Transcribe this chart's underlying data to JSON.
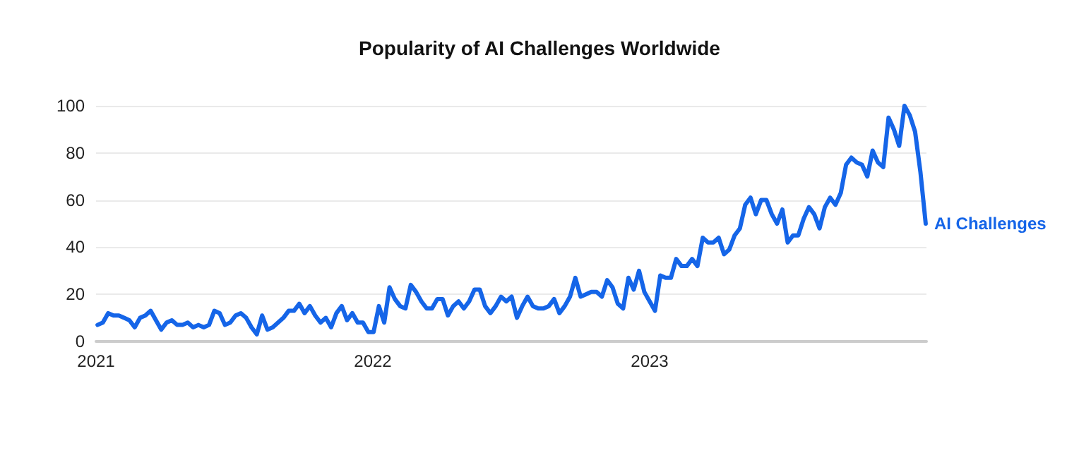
{
  "chart_data": {
    "type": "line",
    "title": "Popularity of AI Challenges Worldwide",
    "x": [
      "2021-01-03",
      "2021-01-10",
      "2021-01-17",
      "2021-01-24",
      "2021-01-31",
      "2021-02-07",
      "2021-02-14",
      "2021-02-21",
      "2021-02-28",
      "2021-03-07",
      "2021-03-14",
      "2021-03-21",
      "2021-03-28",
      "2021-04-04",
      "2021-04-11",
      "2021-04-18",
      "2021-04-25",
      "2021-05-02",
      "2021-05-09",
      "2021-05-16",
      "2021-05-23",
      "2021-05-30",
      "2021-06-06",
      "2021-06-13",
      "2021-06-20",
      "2021-06-27",
      "2021-07-04",
      "2021-07-11",
      "2021-07-18",
      "2021-07-25",
      "2021-08-01",
      "2021-08-08",
      "2021-08-15",
      "2021-08-22",
      "2021-08-29",
      "2021-09-05",
      "2021-09-12",
      "2021-09-19",
      "2021-09-26",
      "2021-10-03",
      "2021-10-10",
      "2021-10-17",
      "2021-10-24",
      "2021-10-31",
      "2021-11-07",
      "2021-11-14",
      "2021-11-21",
      "2021-11-28",
      "2021-12-05",
      "2021-12-12",
      "2021-12-19",
      "2021-12-26",
      "2022-01-02",
      "2022-01-09",
      "2022-01-16",
      "2022-01-23",
      "2022-01-30",
      "2022-02-06",
      "2022-02-13",
      "2022-02-20",
      "2022-02-27",
      "2022-03-06",
      "2022-03-13",
      "2022-03-20",
      "2022-03-27",
      "2022-04-03",
      "2022-04-10",
      "2022-04-17",
      "2022-04-24",
      "2022-05-01",
      "2022-05-08",
      "2022-05-15",
      "2022-05-22",
      "2022-05-29",
      "2022-06-05",
      "2022-06-12",
      "2022-06-19",
      "2022-06-26",
      "2022-07-03",
      "2022-07-10",
      "2022-07-17",
      "2022-07-24",
      "2022-07-31",
      "2022-08-07",
      "2022-08-14",
      "2022-08-21",
      "2022-08-28",
      "2022-09-04",
      "2022-09-11",
      "2022-09-18",
      "2022-09-25",
      "2022-10-02",
      "2022-10-09",
      "2022-10-16",
      "2022-10-23",
      "2022-10-30",
      "2022-11-06",
      "2022-11-13",
      "2022-11-20",
      "2022-11-27",
      "2022-12-04",
      "2022-12-11",
      "2022-12-18",
      "2022-12-25",
      "2023-01-01",
      "2023-01-08",
      "2023-01-15",
      "2023-01-22",
      "2023-01-29",
      "2023-02-05",
      "2023-02-12",
      "2023-02-19",
      "2023-02-26",
      "2023-03-05",
      "2023-03-12",
      "2023-03-19",
      "2023-03-26",
      "2023-04-02",
      "2023-04-09",
      "2023-04-16",
      "2023-04-23",
      "2023-04-30",
      "2023-05-07",
      "2023-05-14",
      "2023-05-21",
      "2023-05-28",
      "2023-06-04",
      "2023-06-11",
      "2023-06-18",
      "2023-06-25",
      "2023-07-02",
      "2023-07-09",
      "2023-07-16",
      "2023-07-23",
      "2023-07-30",
      "2023-08-06",
      "2023-08-13",
      "2023-08-20",
      "2023-08-27",
      "2023-09-03",
      "2023-09-10",
      "2023-09-17",
      "2023-09-24",
      "2023-10-01",
      "2023-10-08",
      "2023-10-15",
      "2023-10-22",
      "2023-10-29",
      "2023-11-05",
      "2023-11-12",
      "2023-11-19",
      "2023-11-26",
      "2023-12-03",
      "2023-12-10",
      "2023-12-17",
      "2023-12-24",
      "2023-12-31"
    ],
    "series": [
      {
        "name": "AI Challenges",
        "color": "#1565e8",
        "values": [
          7,
          8,
          12,
          11,
          11,
          10,
          9,
          6,
          10,
          11,
          13,
          9,
          5,
          8,
          9,
          7,
          7,
          8,
          6,
          7,
          6,
          7,
          13,
          12,
          7,
          8,
          11,
          12,
          10,
          6,
          3,
          11,
          5,
          6,
          8,
          10,
          13,
          13,
          16,
          12,
          15,
          11,
          8,
          10,
          6,
          12,
          15,
          9,
          12,
          8,
          8,
          4,
          4,
          15,
          8,
          23,
          18,
          15,
          14,
          24,
          21,
          17,
          14,
          14,
          18,
          18,
          11,
          15,
          17,
          14,
          17,
          22,
          22,
          15,
          12,
          15,
          19,
          17,
          19,
          10,
          15,
          19,
          15,
          14,
          14,
          15,
          18,
          12,
          15,
          19,
          27,
          19,
          20,
          21,
          21,
          19,
          26,
          23,
          16,
          14,
          27,
          22,
          30,
          21,
          17,
          13,
          28,
          27,
          27,
          35,
          32,
          32,
          35,
          32,
          44,
          42,
          42,
          44,
          37,
          39,
          45,
          48,
          58,
          61,
          54,
          60,
          60,
          54,
          50,
          56,
          42,
          45,
          45,
          52,
          57,
          54,
          48,
          57,
          61,
          58,
          63,
          75,
          78,
          76,
          75,
          70,
          81,
          76,
          74,
          95,
          90,
          83,
          100,
          96,
          89,
          72,
          50
        ]
      }
    ],
    "xlim": [
      "2021-01-01",
      "2024-01-01"
    ],
    "xticks": [
      "2021",
      "2022",
      "2023"
    ],
    "ylim": [
      0,
      100
    ],
    "yticks": [
      0,
      20,
      40,
      60,
      80,
      100
    ],
    "grid": "y",
    "legend": false,
    "marker": "none",
    "line_style": "solid"
  }
}
